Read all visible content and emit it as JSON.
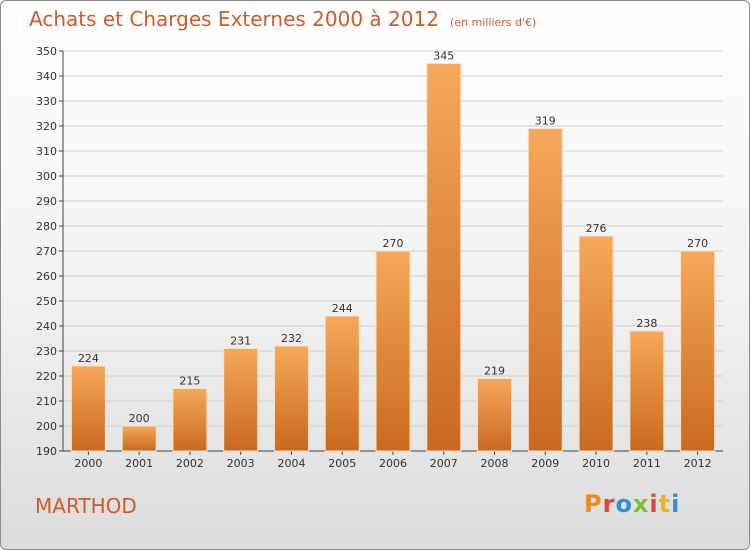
{
  "title": "Achats et Charges Externes 2000 à 2012",
  "unit": "(en milliers d'€)",
  "commune": "MARTHOD",
  "brand": "Proxiti",
  "brand_colors": [
    "#f08a1c",
    "#e6423c",
    "#2e8fd6",
    "#7bbf35",
    "#e6423c",
    "#f0b21c",
    "#2e8fd6"
  ],
  "colors": {
    "bar_light": "#f7a85a",
    "bar_dark": "#c9691f",
    "text_accent": "#d05a2a"
  },
  "chart_data": {
    "type": "bar",
    "categories": [
      "2000",
      "2001",
      "2002",
      "2003",
      "2004",
      "2005",
      "2006",
      "2007",
      "2008",
      "2009",
      "2010",
      "2011",
      "2012"
    ],
    "values": [
      224,
      200,
      215,
      231,
      232,
      244,
      270,
      345,
      219,
      319,
      276,
      238,
      270
    ],
    "ylim": [
      190,
      350
    ],
    "yticks": [
      190,
      200,
      210,
      220,
      230,
      240,
      250,
      260,
      270,
      280,
      290,
      300,
      310,
      320,
      330,
      340,
      350
    ],
    "grid": true,
    "legend": "none"
  }
}
